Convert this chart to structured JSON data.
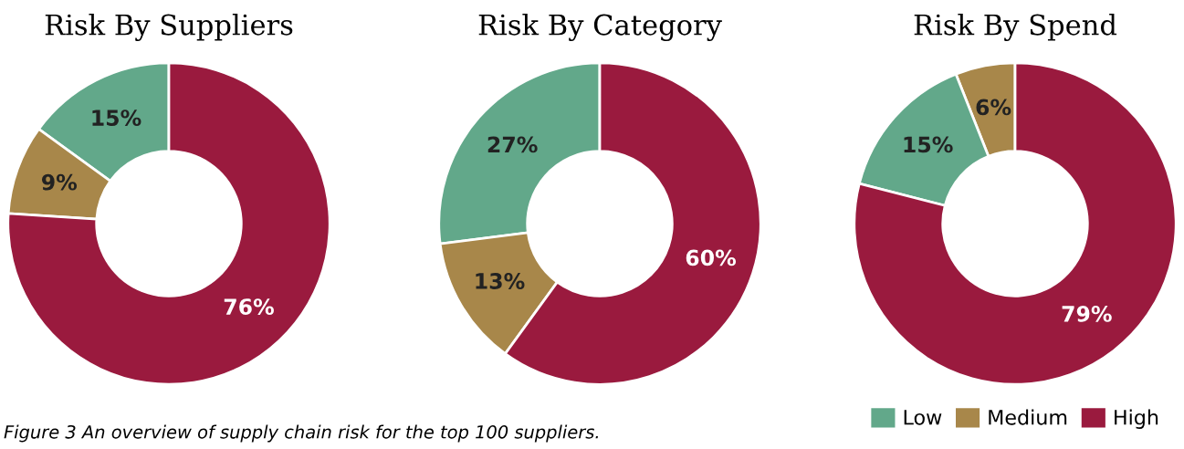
{
  "chart_data": [
    {
      "type": "donut",
      "title": "Risk By Suppliers",
      "categories": [
        "Low",
        "Medium",
        "High"
      ],
      "values": [
        15,
        9,
        76
      ],
      "colors": [
        "#62a88a",
        "#a8874a",
        "#9a1a3e"
      ],
      "value_labels": [
        "15%",
        "9%",
        "76%"
      ],
      "legend": "bottom right",
      "annotations": [
        "Figure 3 An overview of supply chain risk for the top 100 suppliers."
      ]
    },
    {
      "type": "donut",
      "title": "Risk By Category",
      "categories": [
        null,
        null,
        null
      ],
      "values": [
        27,
        13,
        60
      ],
      "colors": [
        "#62a88a",
        "#a8874a",
        "#9a1a3e"
      ],
      "value_labels": [
        "27%",
        "13%",
        "60%"
      ]
    },
    {
      "type": "donut",
      "title": "Risk By Spend",
      "categories": [
        null,
        null,
        null
      ],
      "values": [
        6,
        15,
        79
      ],
      "colors": [
        "#a8874a",
        "#62a88a",
        "#9a1a3e"
      ],
      "value_labels": [
        "6%",
        "15%",
        "79%"
      ]
    }
  ]
}
